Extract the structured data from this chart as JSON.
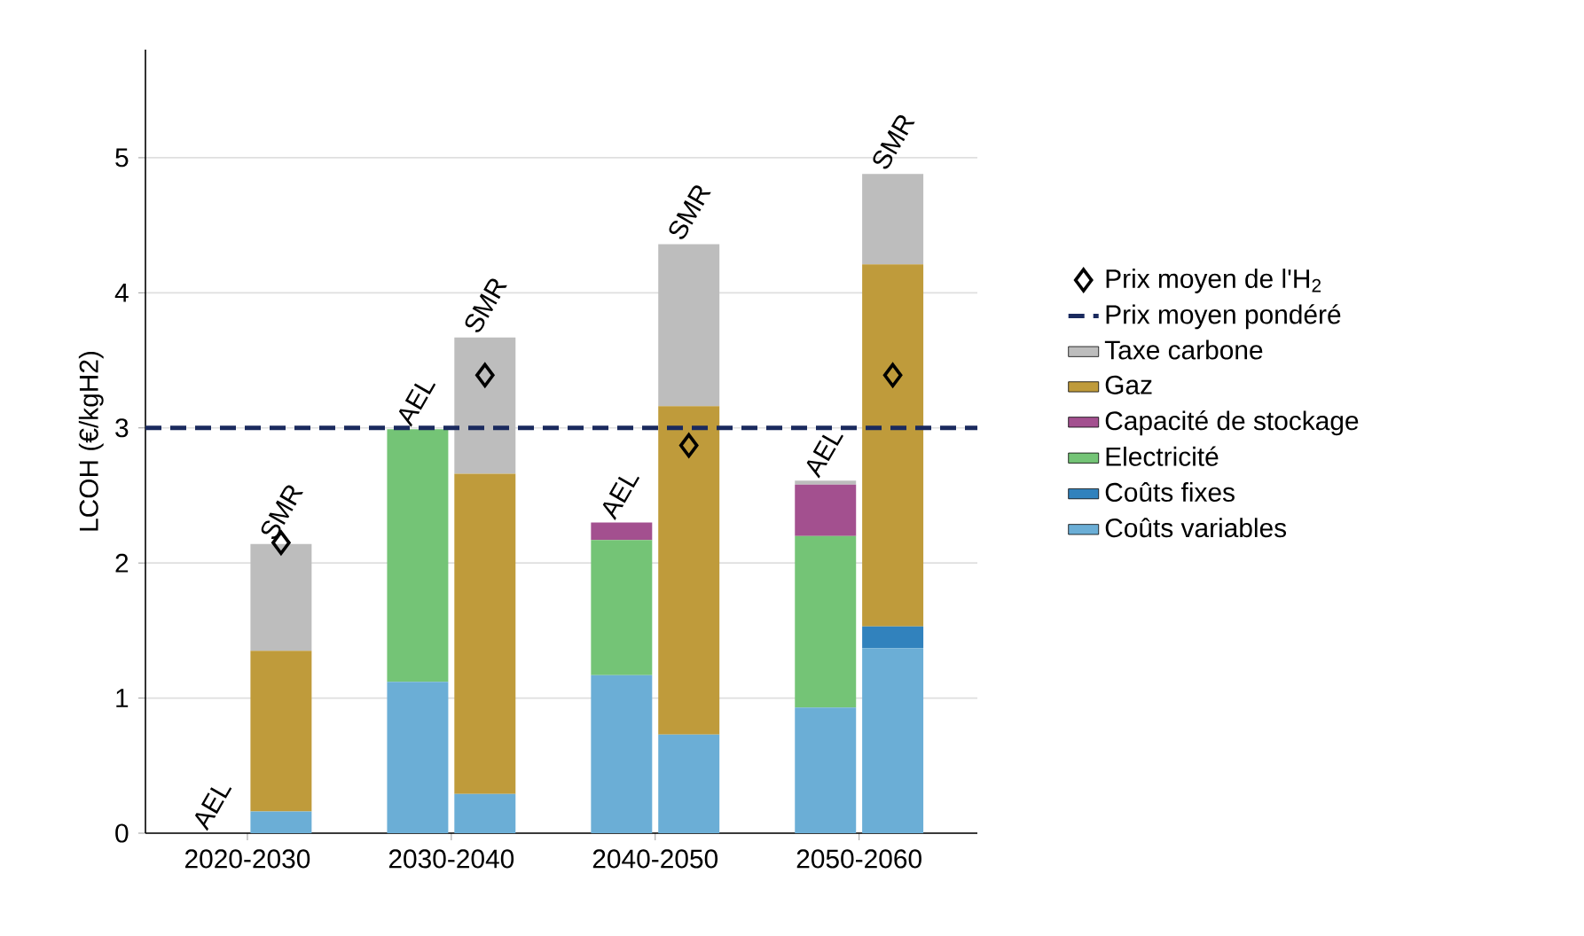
{
  "chart_data": {
    "type": "bar",
    "stacked": true,
    "ylabel": "LCOH (€/kgH2)",
    "categories": [
      "AEL",
      "SMR",
      "AEL",
      "SMR",
      "AEL",
      "SMR",
      "AEL",
      "SMR"
    ],
    "ylim": [
      0,
      5.8
    ],
    "yticks": [
      0,
      1,
      2,
      3,
      4,
      5
    ],
    "grid": "y",
    "legend": "right",
    "series": [
      {
        "name": "Coûts variables",
        "color": "#6baed6",
        "values": [
          0,
          0.16,
          1.12,
          0.29,
          1.17,
          0.73,
          0.93,
          1.37
        ]
      },
      {
        "name": "Coûts fixes",
        "color": "#3182bd",
        "values": [
          0,
          0,
          0,
          0,
          0,
          0,
          0,
          0.16
        ]
      },
      {
        "name": "Electricité",
        "color": "#74c476",
        "values": [
          0,
          0,
          1.87,
          0,
          1.0,
          0,
          1.27,
          0
        ]
      },
      {
        "name": "Capacité de stockage",
        "color": "#a3508f",
        "values": [
          0,
          0,
          0,
          0,
          0.13,
          0,
          0.38,
          0
        ]
      },
      {
        "name": "Gaz",
        "color": "#bf9b3b",
        "values": [
          0,
          1.19,
          0,
          2.37,
          0,
          2.43,
          0,
          2.68
        ]
      },
      {
        "name": "Taxe carbone",
        "color": "#bdbdbd",
        "values": [
          0,
          0.79,
          0,
          1.01,
          0,
          1.2,
          0.03,
          0.67
        ]
      },
      {
        "name": "Prix moyen de l'H$_{2}$",
        "type": "scatter",
        "marker": "diamond",
        "color": "#000000",
        "values": [
          null,
          2.15,
          null,
          3.39,
          null,
          2.87,
          null,
          3.39
        ]
      }
    ],
    "ref_lines": [
      {
        "axis": "y",
        "value": 3,
        "label": "Prix moyen pondéré",
        "color": "#1a2a5e",
        "line_style": "dashed"
      }
    ],
    "annotations": [
      "2020-2030",
      "2030-2040",
      "2040-2050",
      "2050-2060"
    ]
  }
}
